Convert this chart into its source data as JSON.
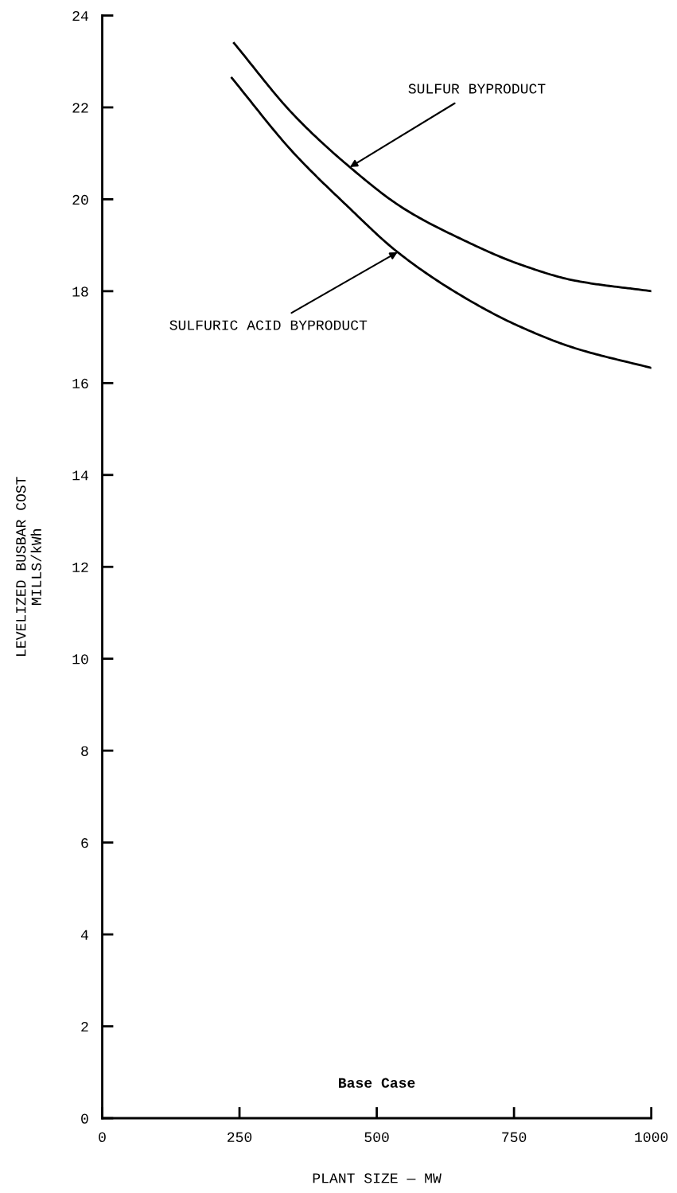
{
  "chart_data": {
    "type": "line",
    "xlabel": "PLANT SIZE — MW",
    "ylabel": "LEVELIZED BUSBAR COST\nMILLS/kWh",
    "xlim": [
      0,
      1000
    ],
    "ylim": [
      0,
      24
    ],
    "xticks": [
      0,
      250,
      500,
      750,
      1000
    ],
    "yticks": [
      0,
      2,
      4,
      6,
      8,
      10,
      12,
      14,
      16,
      18,
      20,
      22,
      24
    ],
    "grid": false,
    "marker": "none",
    "line_style": "solid",
    "series": [
      {
        "color": "#000000",
        "x": [
          240,
          347,
          451,
          549,
          653,
          757,
          861,
          1000
        ],
        "values": [
          23.4,
          21.86,
          20.7,
          19.8,
          19.14,
          18.6,
          18.23,
          18.0
        ]
      },
      {
        "color": "#000000",
        "x": [
          236,
          347,
          444,
          538,
          653,
          757,
          861,
          1000
        ],
        "values": [
          22.64,
          21.03,
          19.88,
          18.85,
          17.91,
          17.25,
          16.76,
          16.33
        ]
      }
    ],
    "annotations": [
      {
        "text": "SULFUR BYPRODUCT",
        "x": 451,
        "y": 20.7
      },
      {
        "text": "SULFURIC ACID BYPRODUCT",
        "x": 538,
        "y": 18.85
      },
      "Base Case"
    ]
  }
}
